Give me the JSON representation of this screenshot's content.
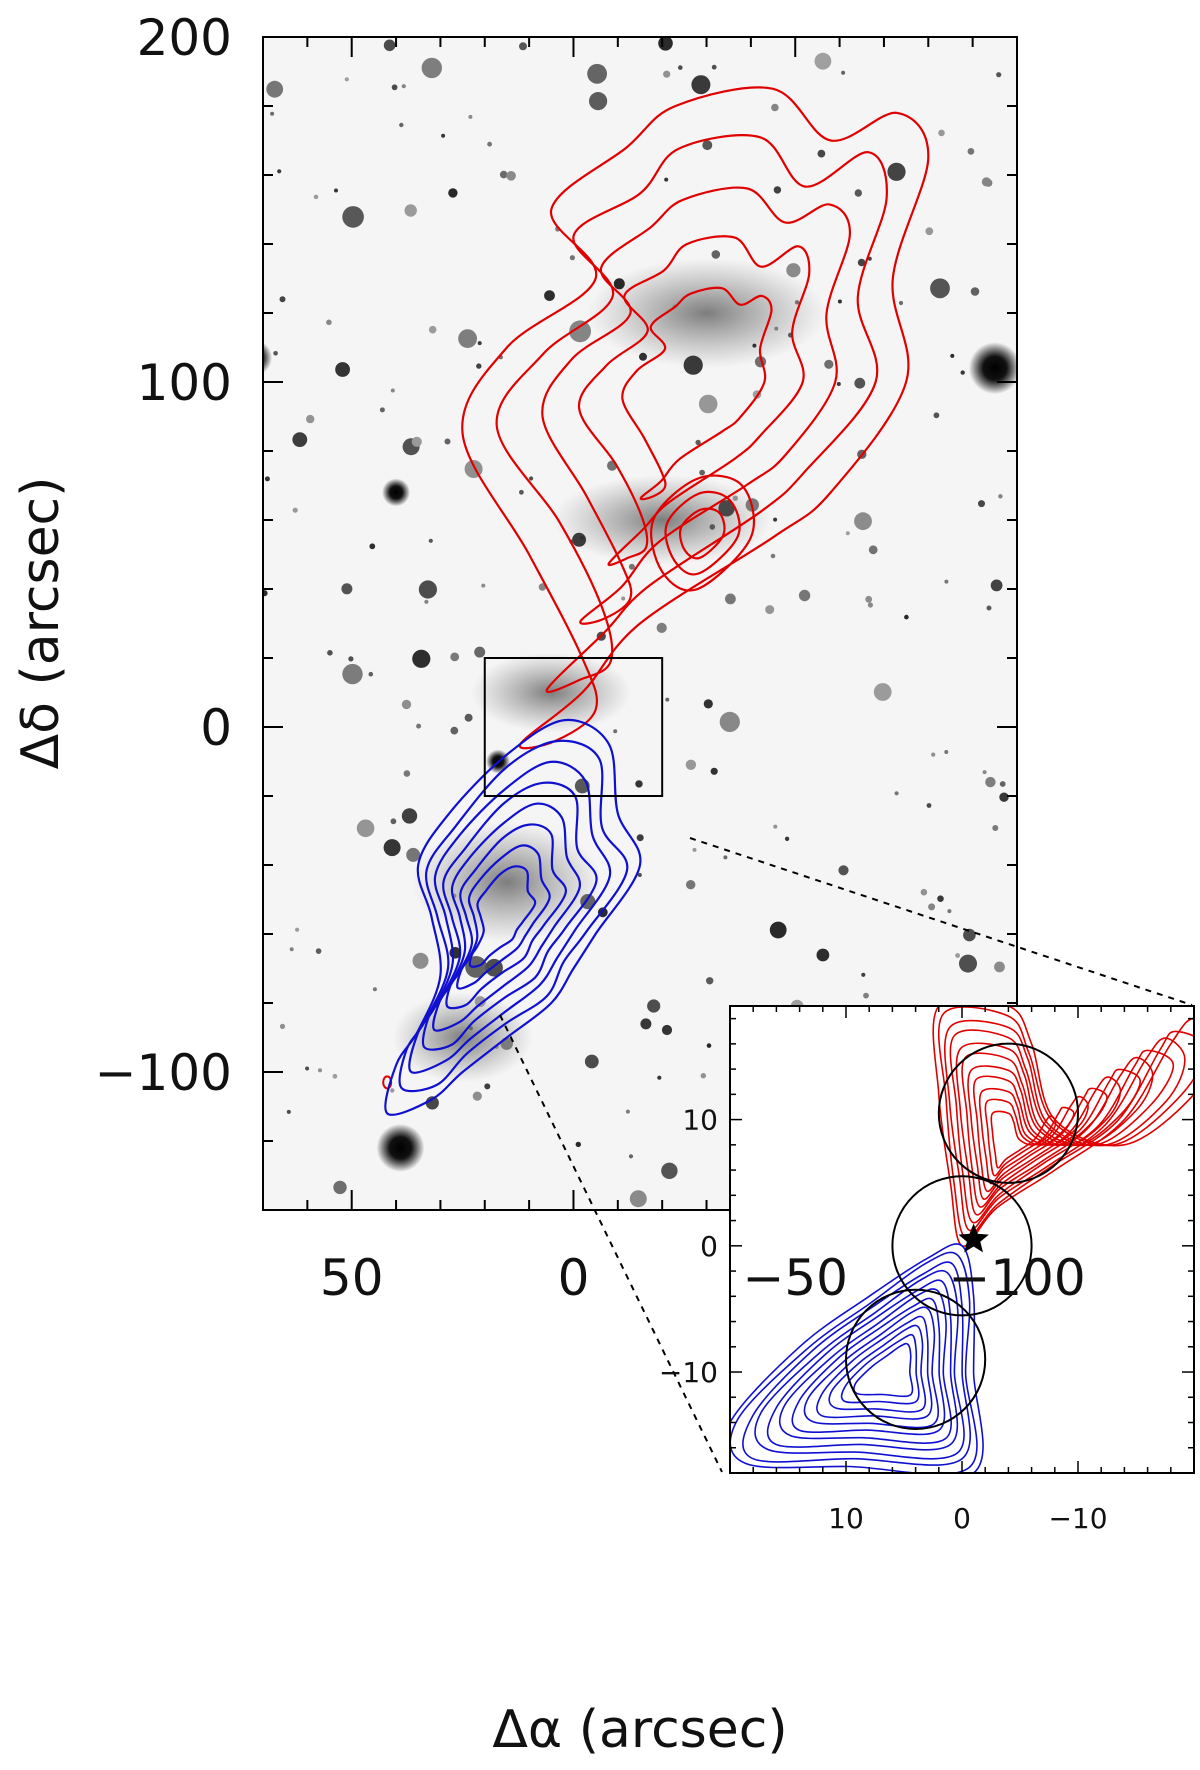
{
  "chart_data": {
    "type": "contour",
    "main": {
      "xlabel": "Δα (arcsec)",
      "ylabel": "Δδ (arcsec)",
      "xlim": [
        70,
        -100
      ],
      "ylim": [
        -140,
        200
      ],
      "xticks": [
        {
          "value": 50,
          "label": "50"
        },
        {
          "value": 0,
          "label": "0"
        },
        {
          "value": -50,
          "label": "−50"
        },
        {
          "value": -100,
          "label": "−100"
        }
      ],
      "yticks": [
        {
          "value": 200,
          "label": "200"
        },
        {
          "value": 100,
          "label": "100"
        },
        {
          "value": 0,
          "label": "0"
        },
        {
          "value": -100,
          "label": "−100"
        }
      ],
      "zoom_box": {
        "x": [
          20,
          -20
        ],
        "y": [
          20,
          -20
        ]
      },
      "background": "grayscale stellar field with diffuse nebulosity",
      "series": [
        {
          "lobe": "redshifted",
          "color": "#e00000",
          "levels": 5,
          "peak": [
            -28,
            100
          ]
        },
        {
          "lobe": "blueshifted",
          "color": "#1010d0",
          "levels": 8,
          "peak": [
            17,
            -55
          ]
        }
      ]
    },
    "inset": {
      "xlim": [
        20,
        -20
      ],
      "ylim": [
        -18,
        19
      ],
      "xticks": [
        {
          "value": 10,
          "label": "10"
        },
        {
          "value": 0,
          "label": "0"
        },
        {
          "value": -10,
          "label": "−10"
        }
      ],
      "yticks": [
        {
          "value": 10,
          "label": "10"
        },
        {
          "value": 0,
          "label": "0"
        },
        {
          "value": -10,
          "label": "−10"
        }
      ],
      "star": [
        -1,
        0.5
      ],
      "beam_circles": [
        {
          "center": [
            -4,
            10.5
          ],
          "radius": 6
        },
        {
          "center": [
            0,
            0
          ],
          "radius": 6
        },
        {
          "center": [
            4,
            -9
          ],
          "radius": 6
        }
      ]
    }
  }
}
